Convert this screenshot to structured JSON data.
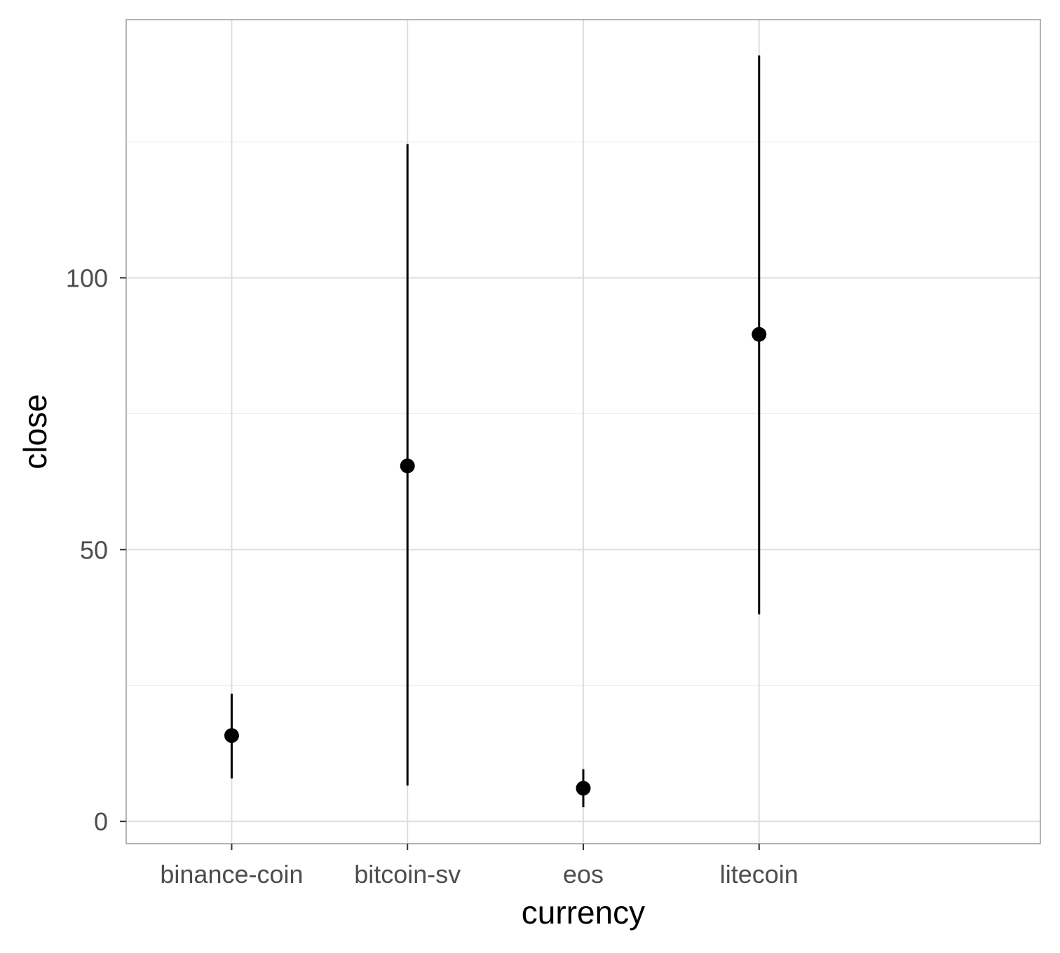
{
  "chart_data": {
    "type": "pointrange",
    "title": "",
    "xlabel": "currency",
    "ylabel": "close",
    "categories": [
      "binance-coin",
      "bitcoin-sv",
      "eos",
      "litecoin"
    ],
    "series": [
      {
        "name": "close",
        "points": [
          {
            "category": "binance-coin",
            "y": 15.8,
            "ymin": 7.9,
            "ymax": 23.5
          },
          {
            "category": "bitcoin-sv",
            "y": 65.4,
            "ymin": 6.6,
            "ymax": 124.6
          },
          {
            "category": "eos",
            "y": 6.1,
            "ymin": 2.6,
            "ymax": 9.6
          },
          {
            "category": "litecoin",
            "y": 89.6,
            "ymin": 38.1,
            "ymax": 140.9
          }
        ]
      }
    ],
    "ylim": [
      -4.1,
      147.5
    ],
    "yticks": [
      0,
      50,
      100
    ],
    "yticks_minor": [
      25,
      75,
      125
    ],
    "grid": true,
    "legend": "none"
  }
}
